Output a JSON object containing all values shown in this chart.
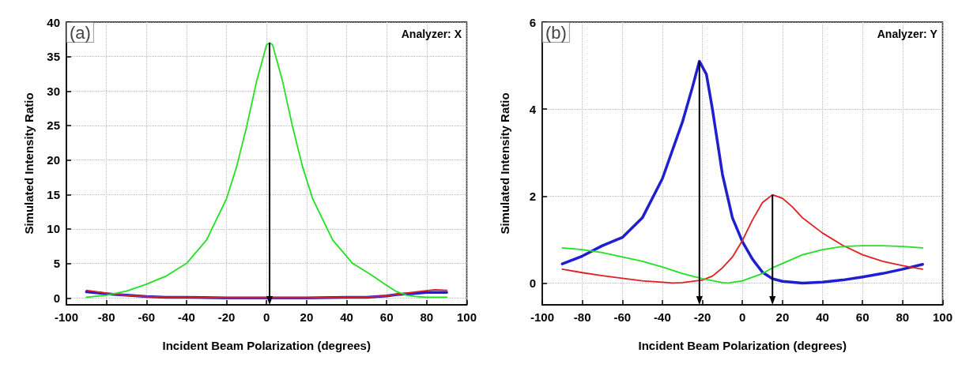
{
  "chart_data": [
    {
      "type": "line",
      "xlabel": "Incident Beam Polarization (degrees)",
      "ylabel": "Simulated Intensity Ratio",
      "annotations": [
        "(a)",
        "Analyzer: X"
      ],
      "xlim": [
        -100,
        100
      ],
      "xticks": [
        -100,
        -80,
        -60,
        -40,
        -20,
        0,
        20,
        40,
        60,
        80,
        100
      ],
      "ylim": [
        -1,
        40
      ],
      "yticks": [
        0,
        5,
        10,
        15,
        20,
        25,
        30,
        35,
        40
      ],
      "grid": true,
      "marker": "none",
      "ref_lines": [
        {
          "axis": "x",
          "value": 1.5,
          "color": "#000000"
        }
      ],
      "series": [
        {
          "color": "#1f1fd0",
          "x": [
            -90,
            -80,
            -75,
            -70,
            -60,
            -50,
            -40,
            -20,
            0,
            20,
            40,
            50,
            60,
            65,
            72,
            80,
            85,
            90
          ],
          "values": [
            0.9,
            0.6,
            0.5,
            0.4,
            0.2,
            0.1,
            0.1,
            0,
            0,
            0,
            0.1,
            0.1,
            0.3,
            0.5,
            0.6,
            0.8,
            0.8,
            0.8
          ]
        },
        {
          "color": "#e02020",
          "x": [
            -90,
            -80,
            -75,
            -70,
            -60,
            -50,
            -40,
            -20,
            0,
            20,
            40,
            50,
            60,
            67,
            72,
            78,
            84,
            90
          ],
          "values": [
            1.1,
            0.7,
            0.5,
            0.4,
            0.2,
            0.1,
            0.1,
            0,
            0,
            0,
            0.1,
            0.1,
            0.3,
            0.6,
            0.8,
            1.0,
            1.2,
            1.1
          ]
        },
        {
          "color": "#22e022",
          "x": [
            -90,
            -80,
            -70,
            -60,
            -50,
            -40,
            -30,
            -20,
            -15,
            -10,
            -5,
            0,
            1.5,
            3,
            8,
            13,
            18,
            23,
            33,
            43,
            53,
            60,
            65,
            70,
            75,
            80,
            85,
            90
          ],
          "values": [
            0.1,
            0.4,
            1.0,
            2.0,
            3.2,
            5.0,
            8.4,
            14.4,
            19.0,
            24.8,
            31.4,
            36.7,
            37,
            36.7,
            31.4,
            24.8,
            19.0,
            14.4,
            8.4,
            5.0,
            3.2,
            1.8,
            0.9,
            0.4,
            0.2,
            0.1,
            0.1,
            0.1
          ]
        }
      ]
    },
    {
      "type": "line",
      "xlabel": "Incident Beam Polarization (degrees)",
      "ylabel": "Simulated Intensity Ratio",
      "annotations": [
        "(b)",
        "Analyzer: Y"
      ],
      "xlim": [
        -100,
        100
      ],
      "xticks": [
        -100,
        -80,
        -60,
        -40,
        -20,
        0,
        20,
        40,
        60,
        80,
        100
      ],
      "ylim": [
        -0.5,
        6
      ],
      "yticks": [
        0,
        2,
        4,
        6
      ],
      "grid": true,
      "marker": "none",
      "ref_lines": [
        {
          "axis": "x",
          "value": -21.5,
          "color": "#000000"
        },
        {
          "axis": "x",
          "value": 15,
          "color": "#000000"
        }
      ],
      "series": [
        {
          "color": "#1f1fd0",
          "x": [
            -90,
            -80,
            -70,
            -60,
            -50,
            -40,
            -30,
            -25,
            -21.5,
            -18,
            -15,
            -10,
            -5,
            0,
            5,
            10,
            15,
            20,
            30,
            40,
            50,
            60,
            70,
            80,
            90
          ],
          "values": [
            0.44,
            0.62,
            0.86,
            1.05,
            1.5,
            2.4,
            3.7,
            4.5,
            5.1,
            4.8,
            4.0,
            2.5,
            1.5,
            0.95,
            0.55,
            0.25,
            0.1,
            0.04,
            0,
            0.02,
            0.07,
            0.14,
            0.22,
            0.32,
            0.43
          ]
        },
        {
          "color": "#e02020",
          "x": [
            -90,
            -80,
            -70,
            -60,
            -50,
            -40,
            -35,
            -30,
            -20,
            -15,
            -10,
            -5,
            0,
            5,
            10,
            15,
            20,
            25,
            30,
            40,
            50,
            60,
            70,
            80,
            90
          ],
          "values": [
            0.32,
            0.24,
            0.17,
            0.11,
            0.05,
            0.02,
            0,
            0.01,
            0.07,
            0.16,
            0.35,
            0.6,
            0.98,
            1.45,
            1.85,
            2.03,
            1.95,
            1.75,
            1.5,
            1.15,
            0.87,
            0.65,
            0.5,
            0.4,
            0.32
          ]
        },
        {
          "color": "#22e022",
          "x": [
            -90,
            -80,
            -70,
            -60,
            -50,
            -40,
            -30,
            -20,
            -10,
            -7,
            0,
            10,
            15,
            20,
            30,
            40,
            50,
            60,
            70,
            80,
            90
          ],
          "values": [
            0.81,
            0.77,
            0.7,
            0.6,
            0.5,
            0.37,
            0.22,
            0.1,
            0.01,
            0,
            0.05,
            0.22,
            0.35,
            0.45,
            0.65,
            0.77,
            0.84,
            0.86,
            0.86,
            0.84,
            0.81
          ]
        }
      ]
    }
  ]
}
